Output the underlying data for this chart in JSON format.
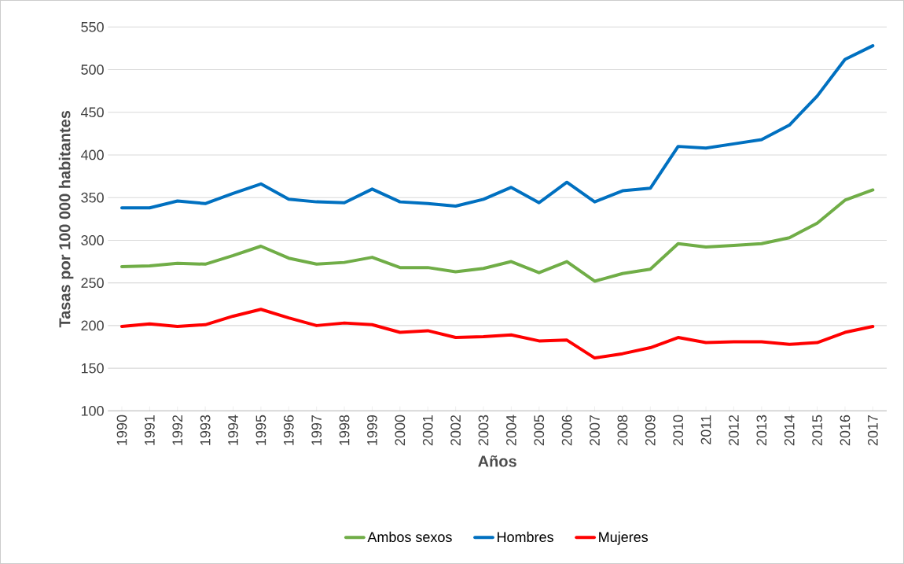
{
  "chart_data": {
    "type": "line",
    "xlabel": "Años",
    "ylabel": "Tasas  por 100 000 habitantes",
    "categories": [
      "1990",
      "1991",
      "1992",
      "1993",
      "1994",
      "1995",
      "1996",
      "1997",
      "1998",
      "1999",
      "2000",
      "2001",
      "2002",
      "2003",
      "2004",
      "2005",
      "2006",
      "2007",
      "2008",
      "2009",
      "2010",
      "2011",
      "2012",
      "2013",
      "2014",
      "2015",
      "2016",
      "2017"
    ],
    "series": [
      {
        "name": "Ambos sexos",
        "color": "#70ad47",
        "values": [
          269,
          270,
          273,
          272,
          282,
          293,
          279,
          272,
          274,
          280,
          268,
          268,
          263,
          267,
          275,
          262,
          275,
          252,
          261,
          266,
          296,
          292,
          294,
          296,
          303,
          320,
          347,
          359
        ]
      },
      {
        "name": "Hombres",
        "color": "#0070c0",
        "values": [
          338,
          338,
          346,
          343,
          355,
          366,
          348,
          345,
          344,
          360,
          345,
          343,
          340,
          348,
          362,
          344,
          368,
          345,
          358,
          361,
          410,
          408,
          413,
          418,
          435,
          469,
          512,
          528
        ]
      },
      {
        "name": "Mujeres",
        "color": "#ff0000",
        "values": [
          199,
          202,
          199,
          201,
          211,
          219,
          209,
          200,
          203,
          201,
          192,
          194,
          186,
          187,
          189,
          182,
          183,
          162,
          167,
          174,
          186,
          180,
          181,
          181,
          178,
          180,
          192,
          199
        ]
      }
    ],
    "ylim": [
      100,
      550
    ],
    "yticks": [
      100,
      150,
      200,
      250,
      300,
      350,
      400,
      450,
      500,
      550
    ],
    "grid": "y",
    "legend": "bottom"
  }
}
